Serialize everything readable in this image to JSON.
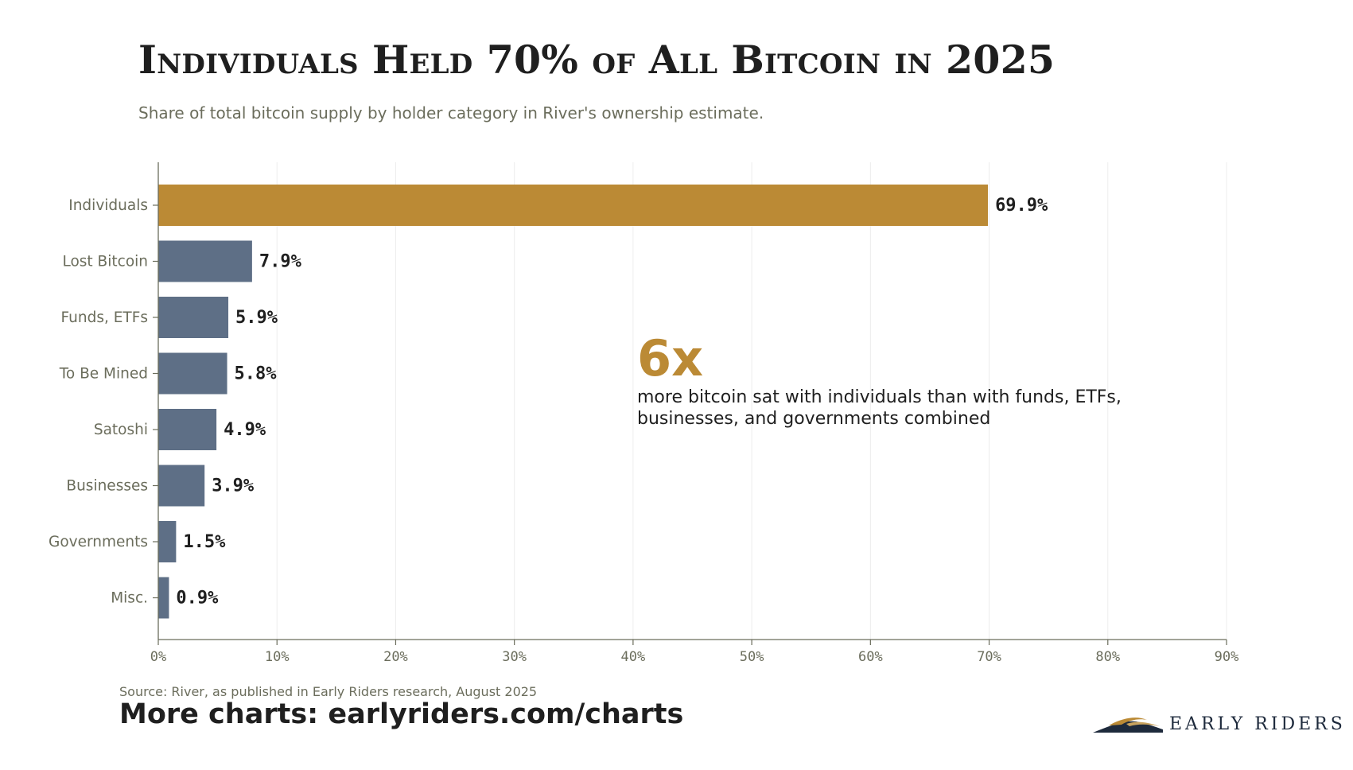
{
  "title": "Individuals Held 70% of All Bitcoin in 2025",
  "subtitle": "Share of total bitcoin supply by holder category in River's ownership estimate.",
  "colors": {
    "highlight": "#bb8a35",
    "bar": "#5e6f86",
    "axis": "#6b6d5c",
    "grid": "#ececec",
    "text": "#1f1f1f",
    "logo_navy": "#1e2a3c"
  },
  "chart_data": {
    "type": "bar",
    "orientation": "horizontal",
    "categories": [
      "Individuals",
      "Lost Bitcoin",
      "Funds, ETFs",
      "To Be Mined",
      "Satoshi",
      "Businesses",
      "Governments",
      "Misc."
    ],
    "values": [
      69.9,
      7.9,
      5.9,
      5.8,
      4.9,
      3.9,
      1.5,
      0.9
    ],
    "data_labels": [
      "69.9%",
      "7.9%",
      "5.9%",
      "5.8%",
      "4.9%",
      "3.9%",
      "1.5%",
      "0.9%"
    ],
    "highlight_index": 0,
    "xlim": [
      0,
      90
    ],
    "xticks": [
      0,
      10,
      20,
      30,
      40,
      50,
      60,
      70,
      80,
      90
    ],
    "xtick_labels": [
      "0%",
      "10%",
      "20%",
      "30%",
      "40%",
      "50%",
      "60%",
      "70%",
      "80%",
      "90%"
    ],
    "grid": "vertical",
    "xlabel": "",
    "ylabel": ""
  },
  "annotation": {
    "big": "6x",
    "text": "more bitcoin sat with individuals than with funds, ETFs, businesses, and governments combined"
  },
  "source": "Source: River, as published in Early Riders research, August 2025",
  "footer_link": "More charts: earlyriders.com/charts",
  "logo": {
    "icon": "mountain-wave-logo-icon",
    "text": "EARLY RIDERS"
  }
}
